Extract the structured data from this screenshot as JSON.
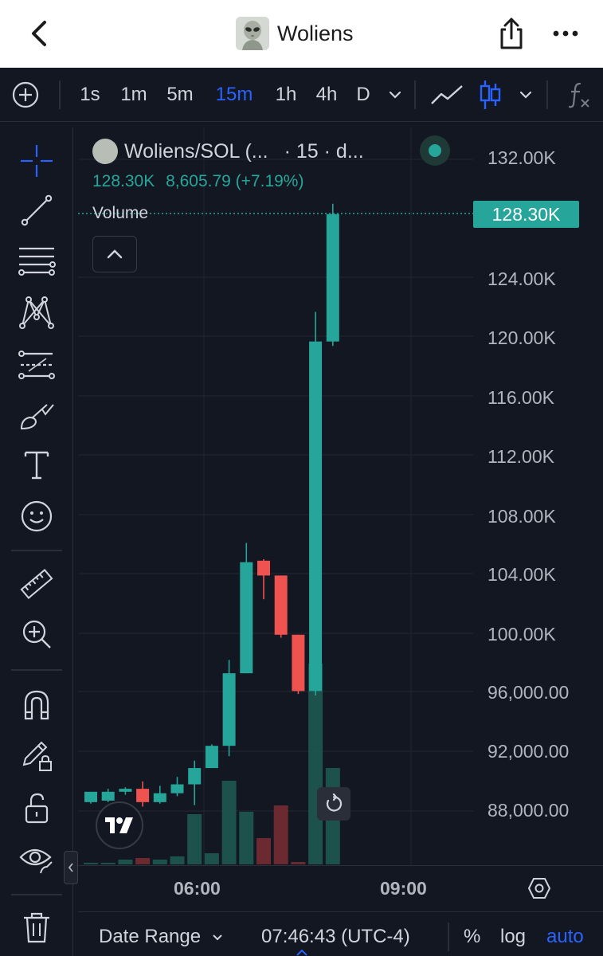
{
  "header": {
    "title": "Woliens"
  },
  "toolbar": {
    "intervals": [
      {
        "label": "1s",
        "active": false
      },
      {
        "label": "1m",
        "active": false
      },
      {
        "label": "5m",
        "active": false
      },
      {
        "label": "15m",
        "active": true
      },
      {
        "label": "1h",
        "active": false
      },
      {
        "label": "4h",
        "active": false
      },
      {
        "label": "D",
        "active": false
      }
    ],
    "chart_type": "candles"
  },
  "legend": {
    "symbol": "Woliens/SOL (...",
    "meta": "· 15 · d...",
    "last": "128.30K",
    "change": "8,605.79 (+7.19%)",
    "volume_label": "Volume"
  },
  "price_axis": {
    "ticks": [
      "132.00K",
      "124.00K",
      "120.00K",
      "116.00K",
      "112.00K",
      "108.00K",
      "104.00K",
      "100.00K",
      "96,000.00",
      "92,000.00",
      "88,000.00"
    ],
    "last_price": "128.30K"
  },
  "time_axis": {
    "labels": [
      "06:00",
      "09:00"
    ]
  },
  "bottom_bar": {
    "date_range": "Date Range",
    "clock": "07:46:43 (UTC-4)",
    "percent": "%",
    "log": "log",
    "auto": "auto"
  },
  "colors": {
    "up": "#26a69a",
    "down": "#ef5350",
    "accent": "#2962ff",
    "background": "#131722"
  },
  "chart_data": {
    "type": "candlestick",
    "ylim": [
      86000,
      134000
    ],
    "candles": [
      {
        "o": 88600,
        "h": 89200,
        "l": 88500,
        "c": 89300
      },
      {
        "o": 88700,
        "h": 89500,
        "l": 88600,
        "c": 89300
      },
      {
        "o": 89300,
        "h": 89600,
        "l": 89100,
        "c": 89500
      },
      {
        "o": 89500,
        "h": 90000,
        "l": 88300,
        "c": 88600
      },
      {
        "o": 88600,
        "h": 89700,
        "l": 88500,
        "c": 89200
      },
      {
        "o": 89200,
        "h": 90300,
        "l": 89000,
        "c": 89800
      },
      {
        "o": 89800,
        "h": 91400,
        "l": 88400,
        "c": 90900
      },
      {
        "o": 90900,
        "h": 92500,
        "l": 90900,
        "c": 92400
      },
      {
        "o": 92400,
        "h": 98200,
        "l": 91700,
        "c": 97300
      },
      {
        "o": 97300,
        "h": 106100,
        "l": 97300,
        "c": 104800
      },
      {
        "o": 104900,
        "h": 105000,
        "l": 102300,
        "c": 103900
      },
      {
        "o": 103900,
        "h": 103900,
        "l": 99700,
        "c": 99900
      },
      {
        "o": 99900,
        "h": 99900,
        "l": 95900,
        "c": 96100
      },
      {
        "o": 96100,
        "h": 121700,
        "l": 95800,
        "c": 119700
      },
      {
        "o": 119700,
        "h": 129000,
        "l": 119400,
        "c": 128300
      }
    ],
    "volume": [
      2,
      2,
      6,
      8,
      6,
      10,
      63,
      14,
      105,
      66,
      33,
      74,
      3,
      252,
      121
    ]
  }
}
